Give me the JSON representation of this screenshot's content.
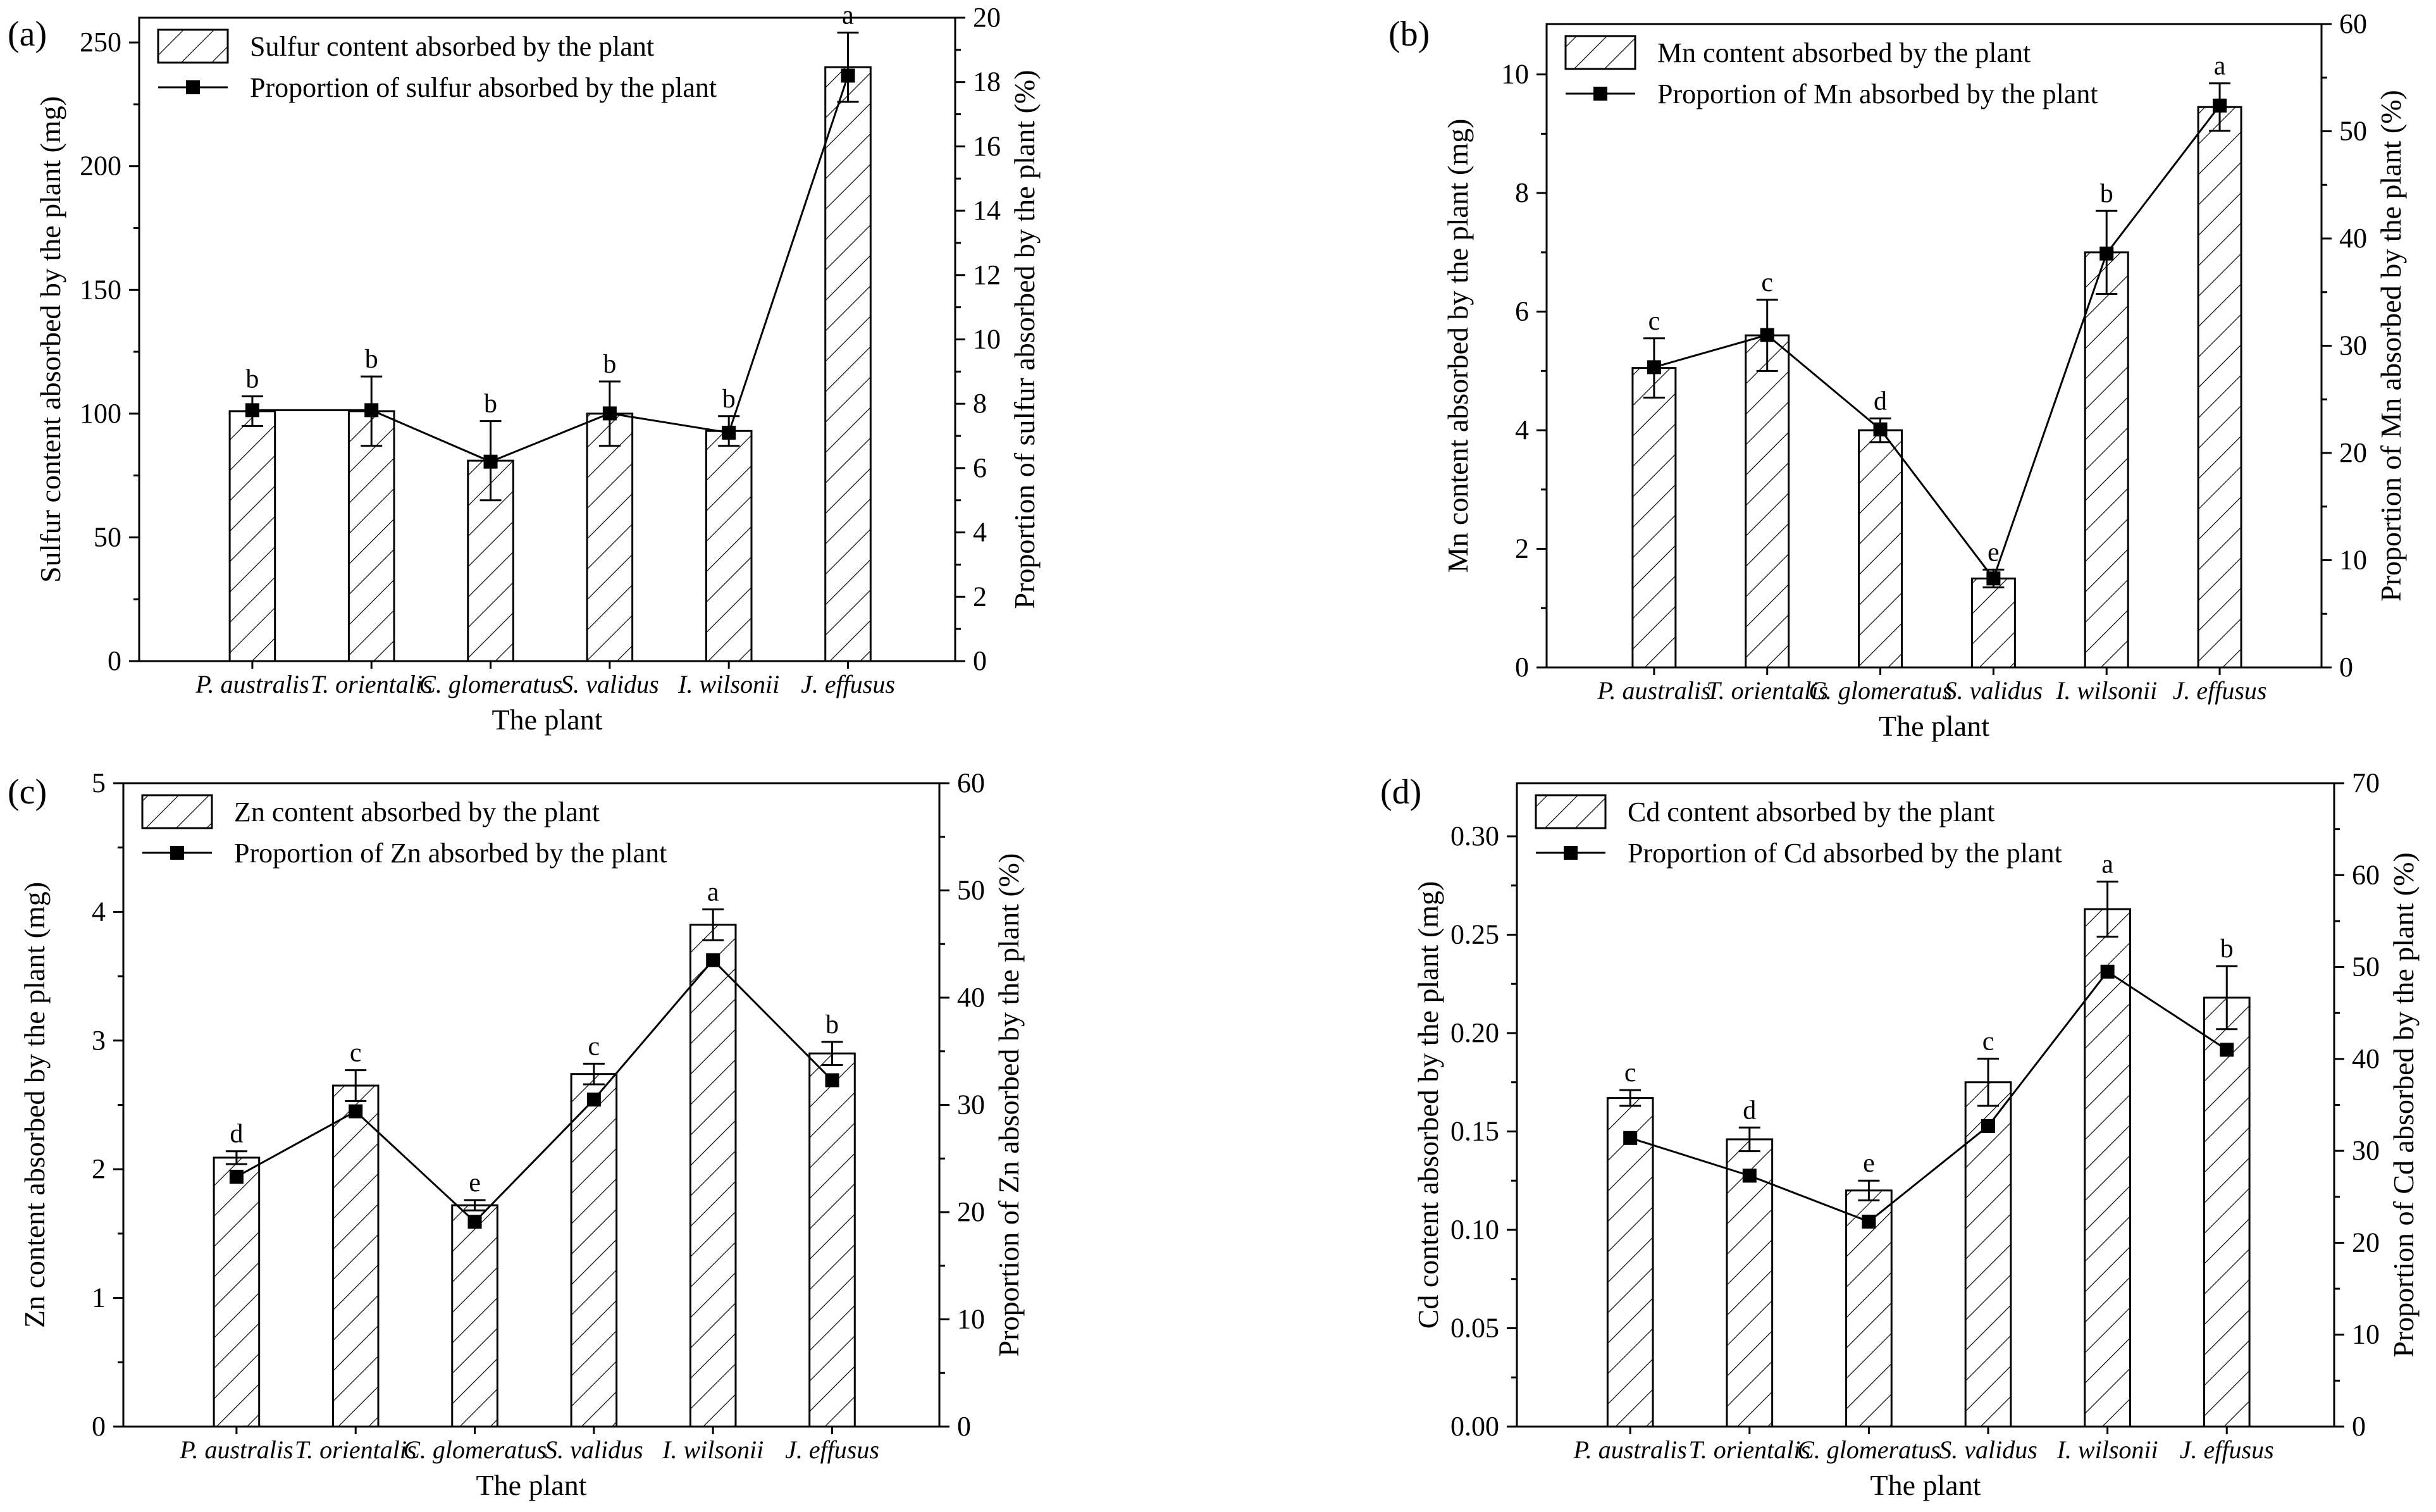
{
  "figure": {
    "plant_names": [
      "P. australis",
      "T. orientalis",
      "C. glomeratus",
      "S. validus",
      "I. wilsonii",
      "J. effusus"
    ],
    "xlabel": "The plant"
  },
  "chart_data": [
    {
      "type": "bar",
      "panel_label": "(a)",
      "title": "",
      "categories": [
        "P. australis",
        "T. orientalis",
        "C. glomeratus",
        "S. validus",
        "I. wilsonii",
        "J. effusus"
      ],
      "xlabel": "The plant",
      "ylabel": "Sulfur content absorbed by the plant (mg)",
      "y2label": "Proportion of sulfur absorbed by the plant (%)",
      "ylim": [
        0,
        260
      ],
      "yticks": [
        "0",
        "50",
        "100",
        "150",
        "200",
        "250"
      ],
      "y2lim": [
        0,
        20
      ],
      "y2ticks": [
        "0",
        "2",
        "4",
        "6",
        "8",
        "10",
        "12",
        "14",
        "16",
        "18",
        "20"
      ],
      "legend": {
        "bar": "Sulfur content absorbed by the plant",
        "line": "Proportion of sulfur absorbed by the plant",
        "position": "top-left"
      },
      "series": [
        {
          "name": "Sulfur content absorbed by the plant",
          "kind": "bar",
          "axis": "left",
          "values": [
            101,
            101,
            81,
            100,
            93,
            240
          ],
          "errors": [
            6,
            14,
            16,
            13,
            6,
            14
          ]
        },
        {
          "name": "Proportion of sulfur absorbed by the plant",
          "kind": "line",
          "axis": "right",
          "values": [
            7.8,
            7.8,
            6.2,
            7.7,
            7.1,
            18.2
          ]
        }
      ],
      "annotations": [
        "b",
        "b",
        "b",
        "b",
        "b",
        "a"
      ]
    },
    {
      "type": "bar",
      "panel_label": "(b)",
      "title": "",
      "categories": [
        "P. australis",
        "T. orientalis",
        "C. glomeratus",
        "S. validus",
        "I. wilsonii",
        "J. effusus"
      ],
      "xlabel": "The plant",
      "ylabel": "Mn content absorbed by the plant (mg)",
      "y2label": "Proportion of Mn absorbed by the plant (%)",
      "ylim": [
        0,
        10.85
      ],
      "yticks": [
        "0",
        "2",
        "4",
        "6",
        "8",
        "10"
      ],
      "y2lim": [
        0,
        60
      ],
      "y2ticks": [
        "0",
        "10",
        "20",
        "30",
        "40",
        "50",
        "60"
      ],
      "legend": {
        "bar": "Mn content absorbed by the plant",
        "line": "Proportion of Mn absorbed by the plant",
        "position": "top-left"
      },
      "series": [
        {
          "name": "Mn content absorbed by the plant",
          "kind": "bar",
          "axis": "left",
          "values": [
            5.05,
            5.6,
            4.0,
            1.5,
            7.0,
            9.45
          ],
          "errors": [
            0.5,
            0.6,
            0.2,
            0.15,
            0.7,
            0.4
          ]
        },
        {
          "name": "Proportion of Mn absorbed by the plant",
          "kind": "line",
          "axis": "right",
          "values": [
            28,
            31,
            22.2,
            8.3,
            38.6,
            52.4
          ]
        }
      ],
      "annotations": [
        "c",
        "c",
        "d",
        "e",
        "b",
        "a"
      ]
    },
    {
      "type": "bar",
      "panel_label": "(c)",
      "title": "",
      "categories": [
        "P. australis",
        "T. orientalis",
        "C. glomeratus",
        "S. validus",
        "I. wilsonii",
        "J. effusus"
      ],
      "xlabel": "The plant",
      "ylabel": "Zn content absorbed by the plant (mg)",
      "y2label": "Proportion of Zn absorbed by the plant (%)",
      "ylim": [
        0,
        5
      ],
      "yticks": [
        "0",
        "1",
        "2",
        "3",
        "4",
        "5"
      ],
      "y2lim": [
        0,
        60
      ],
      "y2ticks": [
        "0",
        "10",
        "20",
        "30",
        "40",
        "50",
        "60"
      ],
      "legend": {
        "bar": "Zn content absorbed by the plant",
        "line": "Proportion of Zn absorbed by the plant",
        "position": "top-left"
      },
      "series": [
        {
          "name": "Zn content absorbed by the plant",
          "kind": "bar",
          "axis": "left",
          "values": [
            2.09,
            2.65,
            1.72,
            2.74,
            3.9,
            2.9
          ],
          "errors": [
            0.05,
            0.12,
            0.04,
            0.08,
            0.12,
            0.09
          ]
        },
        {
          "name": "Proportion of Zn absorbed by the plant",
          "kind": "line",
          "axis": "right",
          "values": [
            23.3,
            29.4,
            19.1,
            30.5,
            43.5,
            32.3
          ]
        }
      ],
      "annotations": [
        "d",
        "c",
        "e",
        "c",
        "a",
        "b"
      ]
    },
    {
      "type": "bar",
      "panel_label": "(d)",
      "title": "",
      "categories": [
        "P. australis",
        "T. orientalis",
        "C. glomeratus",
        "S. validus",
        "I. wilsonii",
        "J. effusus"
      ],
      "xlabel": "The plant",
      "ylabel": "Cd content absorbed by the plant (mg)",
      "y2label": "Proportion of Cd absorbed by the plant (%)",
      "ylim": [
        0,
        0.327
      ],
      "yticks": [
        "0.00",
        "0.05",
        "0.10",
        "0.15",
        "0.20",
        "0.25",
        "0.30"
      ],
      "y2lim": [
        0,
        70
      ],
      "y2ticks": [
        "0",
        "10",
        "20",
        "30",
        "40",
        "50",
        "60",
        "70"
      ],
      "legend": {
        "bar": "Cd content absorbed by the plant",
        "line": "Proportion of Cd absorbed by the plant",
        "position": "top-left"
      },
      "series": [
        {
          "name": "Cd content absorbed by the plant",
          "kind": "bar",
          "axis": "left",
          "values": [
            0.167,
            0.146,
            0.12,
            0.175,
            0.263,
            0.218
          ],
          "errors": [
            0.004,
            0.006,
            0.005,
            0.012,
            0.014,
            0.016
          ]
        },
        {
          "name": "Proportion of Cd absorbed by the plant",
          "kind": "line",
          "axis": "right",
          "values": [
            31.4,
            27.3,
            22.3,
            32.7,
            49.5,
            41.0
          ]
        }
      ],
      "annotations": [
        "c",
        "d",
        "e",
        "c",
        "a",
        "b"
      ]
    }
  ]
}
